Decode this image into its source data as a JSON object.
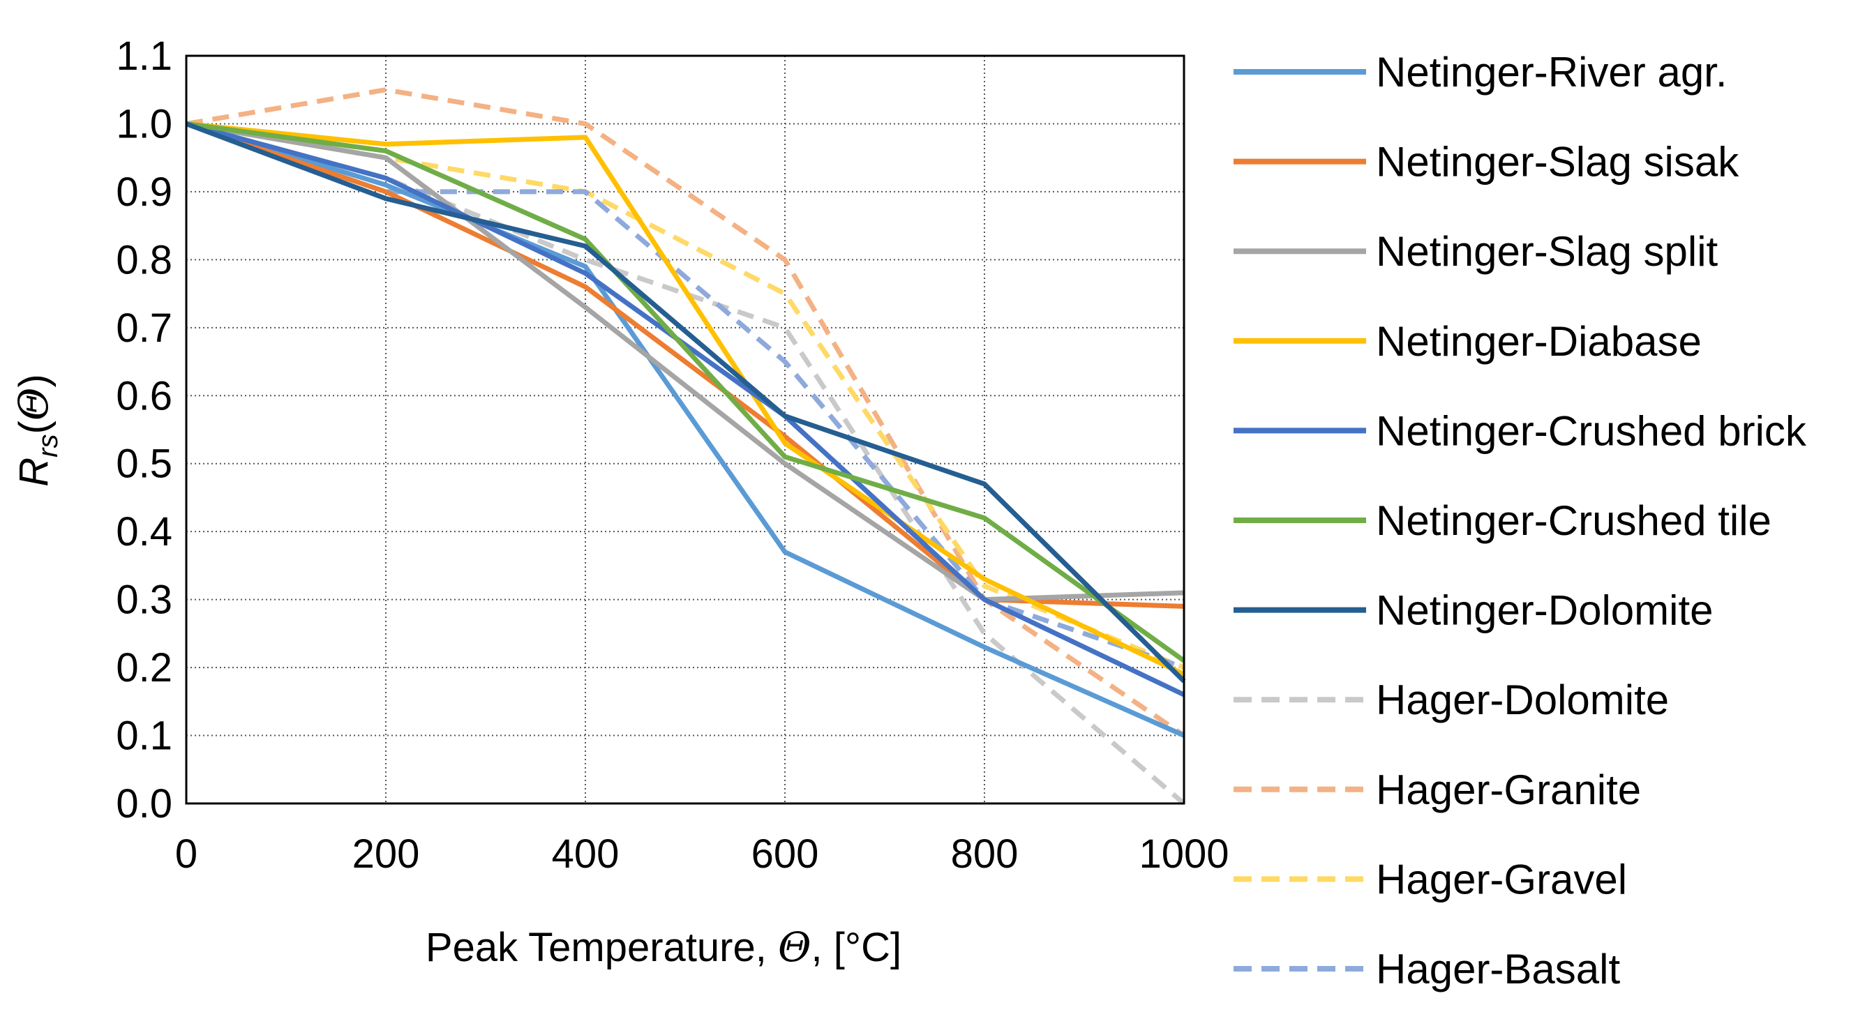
{
  "chart_data": {
    "type": "line",
    "xlabel_prefix": "Peak Temperature, ",
    "xlabel_symbol": "Θ",
    "xlabel_suffix": ", [°C]",
    "ylabel_main": "R",
    "ylabel_sub": "rs",
    "ylabel_open": "(",
    "ylabel_symbol": "Θ",
    "ylabel_close": ")",
    "xlim": [
      0,
      1000
    ],
    "ylim": [
      0,
      1.1
    ],
    "x_ticks": [
      0,
      200,
      400,
      600,
      800,
      1000
    ],
    "x_tick_labels": [
      "0",
      "200",
      "400",
      "600",
      "800",
      "1000"
    ],
    "y_ticks": [
      0,
      0.1,
      0.2,
      0.3,
      0.4,
      0.5,
      0.6,
      0.7,
      0.8,
      0.9,
      1.0,
      1.1
    ],
    "y_tick_labels": [
      "0.0",
      "0.1",
      "0.2",
      "0.3",
      "0.4",
      "0.5",
      "0.6",
      "0.7",
      "0.8",
      "0.9",
      "1.0",
      "1.1"
    ],
    "grid": true,
    "grid_style": "dotted",
    "legend_position": "right",
    "series": [
      {
        "name": "Netinger-River agr.",
        "color": "#5B9BD5",
        "dash": false,
        "x": [
          0,
          200,
          400,
          600,
          800,
          1000
        ],
        "y": [
          1.0,
          0.91,
          0.79,
          0.37,
          0.23,
          0.1
        ]
      },
      {
        "name": "Netinger-Slag sisak",
        "color": "#ED7D31",
        "dash": false,
        "x": [
          0,
          200,
          400,
          600,
          800,
          1000
        ],
        "y": [
          1.0,
          0.9,
          0.76,
          0.54,
          0.3,
          0.29
        ]
      },
      {
        "name": "Netinger-Slag split",
        "color": "#A5A5A5",
        "dash": false,
        "x": [
          0,
          200,
          400,
          600,
          800,
          1000
        ],
        "y": [
          1.0,
          0.95,
          0.73,
          0.5,
          0.3,
          0.31
        ]
      },
      {
        "name": "Netinger-Diabase",
        "color": "#FFC000",
        "dash": false,
        "x": [
          0,
          200,
          400,
          600,
          800,
          1000
        ],
        "y": [
          1.0,
          0.97,
          0.98,
          0.53,
          0.33,
          0.19
        ]
      },
      {
        "name": "Netinger-Crushed brick",
        "color": "#4472C4",
        "dash": false,
        "x": [
          0,
          200,
          400,
          600,
          800,
          1000
        ],
        "y": [
          1.0,
          0.92,
          0.78,
          0.57,
          0.3,
          0.16
        ]
      },
      {
        "name": "Netinger-Crushed tile",
        "color": "#70AD47",
        "dash": false,
        "x": [
          0,
          200,
          400,
          600,
          800,
          1000
        ],
        "y": [
          1.0,
          0.96,
          0.83,
          0.51,
          0.42,
          0.21
        ]
      },
      {
        "name": "Netinger-Dolomite",
        "color": "#255E91",
        "dash": false,
        "x": [
          0,
          200,
          400,
          600,
          800,
          1000
        ],
        "y": [
          1.0,
          0.89,
          0.82,
          0.57,
          0.47,
          0.18
        ]
      },
      {
        "name": "Hager-Dolomite",
        "color": "#C9C9C9",
        "dash": true,
        "x": [
          0,
          200,
          400,
          600,
          800,
          1000
        ],
        "y": [
          1.0,
          0.92,
          0.8,
          0.7,
          0.25,
          0.0
        ]
      },
      {
        "name": "Hager-Granite",
        "color": "#F4B183",
        "dash": true,
        "x": [
          0,
          200,
          400,
          600,
          800,
          1000
        ],
        "y": [
          1.0,
          1.05,
          1.0,
          0.8,
          0.3,
          0.1
        ]
      },
      {
        "name": "Hager-Gravel",
        "color": "#FFD966",
        "dash": true,
        "x": [
          0,
          200,
          400,
          600,
          800,
          1000
        ],
        "y": [
          1.0,
          0.95,
          0.9,
          0.75,
          0.32,
          0.2
        ]
      },
      {
        "name": "Hager-Basalt",
        "color": "#8EA9DB",
        "dash": true,
        "x": [
          0,
          200,
          400,
          600,
          800,
          1000
        ],
        "y": [
          1.0,
          0.9,
          0.9,
          0.65,
          0.3,
          0.2
        ]
      }
    ]
  }
}
